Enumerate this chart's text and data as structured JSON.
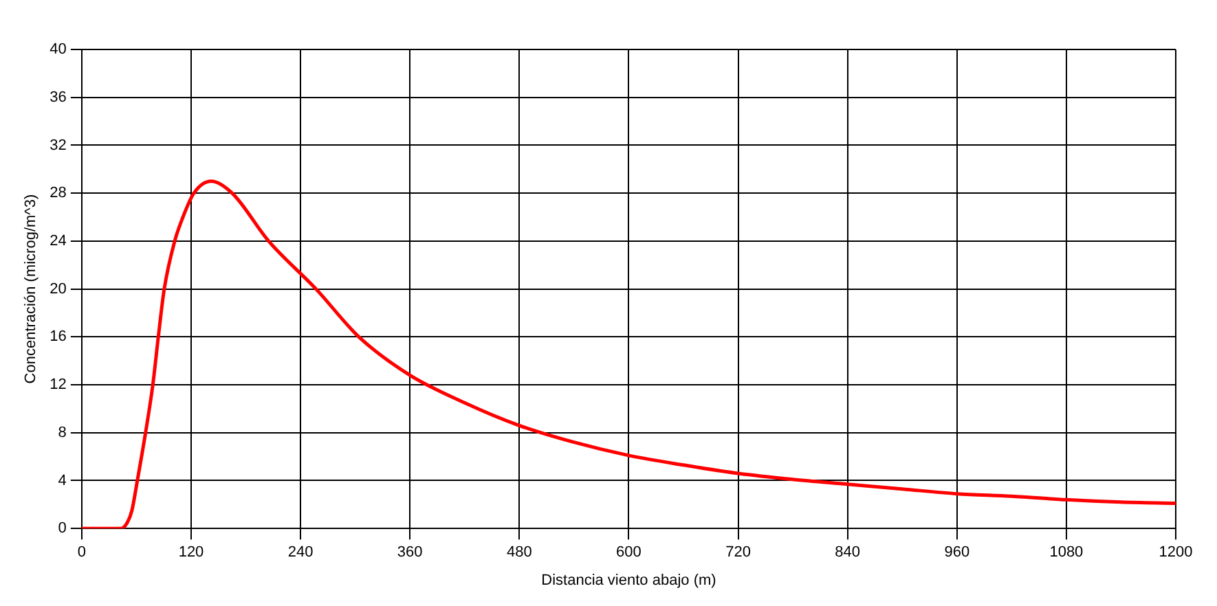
{
  "chart_data": {
    "type": "line",
    "xlabel": "Distancia viento abajo (m)",
    "ylabel": "Concentración (microg/m^3)",
    "x": [
      0,
      20,
      43,
      50,
      55,
      61,
      70,
      78,
      84,
      90.5,
      102,
      111,
      123,
      142,
      165,
      205,
      257,
      304,
      360,
      420,
      480,
      540,
      600,
      660,
      720,
      780,
      840,
      900,
      960,
      1020,
      1080,
      1140,
      1200
    ],
    "series": [
      {
        "color": "#ff0000",
        "values": [
          0,
          0,
          0,
          0.5,
          1.5,
          4,
          8,
          12,
          16,
          20,
          24,
          26,
          28,
          29,
          28,
          24,
          20,
          16,
          12.8,
          10.5,
          8.6,
          7.2,
          6.1,
          5.3,
          4.6,
          4.1,
          3.7,
          3.3,
          2.9,
          2.7,
          2.4,
          2.2,
          2.1
        ]
      }
    ],
    "xlim": [
      0,
      1200
    ],
    "xticks": [
      0,
      120,
      240,
      360,
      480,
      600,
      720,
      840,
      960,
      1080,
      1200
    ],
    "ylim": [
      0,
      40
    ],
    "yticks": [
      0,
      4,
      8,
      12,
      16,
      20,
      24,
      28,
      32,
      36,
      40
    ],
    "grid": true,
    "legend": false,
    "marker": "none",
    "line_style": "solid"
  }
}
